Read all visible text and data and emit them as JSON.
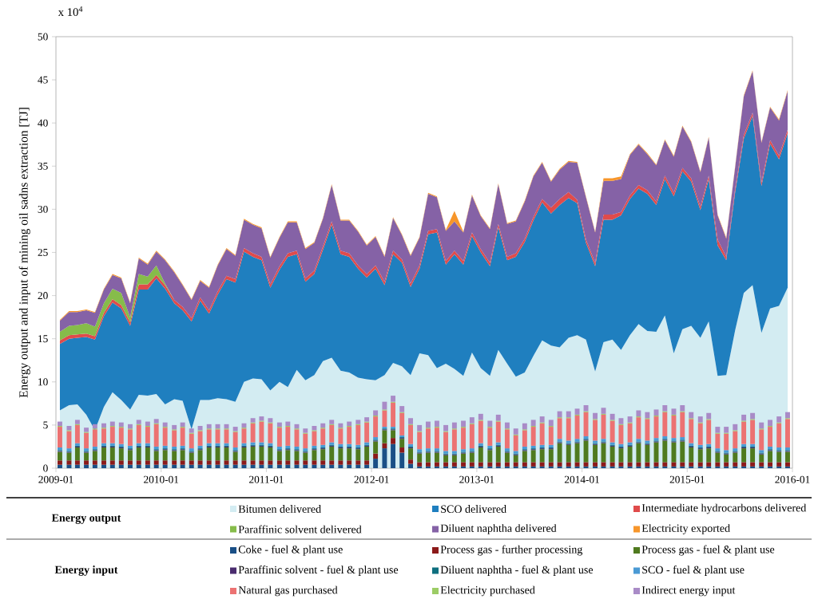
{
  "chart_data": [
    {
      "type": "area",
      "stacked": true,
      "ylabel": "Energy output and input of mining oil sadns extraction [TJ]",
      "annotations": [
        "x 10$^{4}$"
      ],
      "legend": "bottom",
      "legend_title": "Energy output",
      "xlim": [
        "2009-01",
        "2016-01"
      ],
      "xticks": [
        "2009-01",
        "2010-01",
        "2011-01",
        "2012-01",
        "2013-01",
        "2014-01",
        "2015-01",
        "2016-01"
      ],
      "ylim": [
        0,
        50
      ],
      "yticks": [
        0,
        5,
        10,
        15,
        20,
        25,
        30,
        35,
        40,
        45,
        50
      ],
      "x": [
        "2009-01-15",
        "2009-02-15",
        "2009-03-15",
        "2009-04-15",
        "2009-05-15",
        "2009-06-15",
        "2009-07-15",
        "2009-08-15",
        "2009-09-15",
        "2009-10-15",
        "2009-11-15",
        "2009-12-15",
        "2010-01-15",
        "2010-02-15",
        "2010-03-15",
        "2010-04-15",
        "2010-05-15",
        "2010-06-15",
        "2010-07-15",
        "2010-08-15",
        "2010-09-15",
        "2010-10-15",
        "2010-11-15",
        "2010-12-15",
        "2011-01-15",
        "2011-02-15",
        "2011-03-15",
        "2011-04-15",
        "2011-05-15",
        "2011-06-15",
        "2011-07-15",
        "2011-08-15",
        "2011-09-15",
        "2011-10-15",
        "2011-11-15",
        "2011-12-15",
        "2012-01-15",
        "2012-02-15",
        "2012-03-15",
        "2012-04-15",
        "2012-05-15",
        "2012-06-15",
        "2012-07-15",
        "2012-08-15",
        "2012-09-15",
        "2012-10-15",
        "2012-11-15",
        "2012-12-15",
        "2013-01-15",
        "2013-02-15",
        "2013-03-15",
        "2013-04-15",
        "2013-05-15",
        "2013-06-15",
        "2013-07-15",
        "2013-08-15",
        "2013-09-15",
        "2013-10-15",
        "2013-11-15",
        "2013-12-15",
        "2014-01-15",
        "2014-02-15",
        "2014-03-15",
        "2014-04-15",
        "2014-05-15",
        "2014-06-15",
        "2014-07-15",
        "2014-08-15",
        "2014-09-15",
        "2014-10-15",
        "2014-11-15",
        "2014-12-15",
        "2015-01-15",
        "2015-02-15",
        "2015-03-15",
        "2015-04-15",
        "2015-05-15",
        "2015-06-15",
        "2015-07-15",
        "2015-08-15",
        "2015-09-15",
        "2015-10-15",
        "2015-11-15",
        "2015-12-15"
      ],
      "series": [
        {
          "name": "Bitumen delivered",
          "color": "#d3ecf2",
          "values": [
            6.7,
            7.3,
            7.4,
            6.2,
            4.4,
            7.1,
            8.8,
            7.9,
            6.8,
            8.5,
            8.4,
            8.6,
            7.4,
            8.0,
            7.8,
            4.5,
            7.9,
            7.9,
            8.1,
            8.0,
            7.7,
            10.0,
            10.4,
            10.3,
            9.0,
            10.0,
            9.4,
            11.4,
            10.2,
            10.8,
            12.4,
            12.8,
            11.3,
            11.1,
            10.5,
            10.3,
            10.2,
            10.8,
            12.2,
            11.8,
            10.8,
            13.3,
            13.1,
            11.6,
            12.1,
            11.5,
            10.7,
            13.4,
            11.6,
            10.7,
            13.7,
            12.1,
            10.6,
            11.1,
            13.0,
            14.8,
            14.2,
            14.0,
            15.1,
            15.4,
            14.9,
            11.2,
            14.6,
            14.9,
            13.7,
            15.4,
            16.7,
            15.9,
            15.8,
            17.7,
            13.3,
            16.1,
            16.5,
            15.1,
            17.0,
            10.7,
            10.8,
            16.0,
            20.3,
            21.2,
            15.7,
            18.5,
            18.8,
            20.9
          ]
        },
        {
          "name": "SCO delivered",
          "color": "#1f7fbf",
          "values": [
            7.7,
            7.7,
            7.7,
            9.0,
            10.5,
            10.5,
            10.4,
            10.6,
            9.7,
            12.2,
            12.3,
            13.4,
            13.4,
            11.1,
            10.5,
            12.5,
            11.5,
            10.0,
            12.0,
            13.9,
            13.8,
            15.1,
            14.1,
            13.8,
            11.9,
            13.0,
            15.1,
            13.4,
            11.4,
            11.7,
            12.9,
            15.4,
            13.5,
            13.4,
            12.6,
            11.8,
            12.9,
            10.4,
            12.6,
            12.0,
            10.2,
            9.8,
            14.0,
            15.7,
            11.5,
            13.3,
            12.9,
            13.5,
            13.4,
            12.7,
            14.2,
            12.0,
            13.9,
            15.1,
            15.7,
            16.0,
            15.3,
            16.5,
            16.2,
            15.3,
            11.2,
            12.2,
            14.2,
            13.9,
            15.6,
            15.8,
            15.7,
            15.9,
            14.7,
            15.8,
            18.2,
            18.3,
            16.7,
            14.8,
            16.5,
            15.1,
            13.3,
            16.0,
            17.9,
            19.6,
            17.0,
            19.1,
            17.0,
            17.9
          ]
        },
        {
          "name": "Intermediate hydrocarbons delivered",
          "color": "#e04b4b",
          "values": [
            0.4,
            0.4,
            0.4,
            0.4,
            0.4,
            0.4,
            0.4,
            0.4,
            0.4,
            0.6,
            0.6,
            0.4,
            0.4,
            0.4,
            0.4,
            0.4,
            0.4,
            0.4,
            0.4,
            0.4,
            0.4,
            0.4,
            0.4,
            0.4,
            0.4,
            0.4,
            0.4,
            0.4,
            0.4,
            0.4,
            0.4,
            0.4,
            0.4,
            0.4,
            0.4,
            0.4,
            0.4,
            0.4,
            0.4,
            0.4,
            0.4,
            0.4,
            0.4,
            0.4,
            0.4,
            0.4,
            0.4,
            0.4,
            0.4,
            0.4,
            0.4,
            0.4,
            0.4,
            0.4,
            0.4,
            0.4,
            0.7,
            0.7,
            0.7,
            0.4,
            0.4,
            0.4,
            0.6,
            0.6,
            0.4,
            0.4,
            0.4,
            0.4,
            0.4,
            0.4,
            0.4,
            0.4,
            0.4,
            0.4,
            0.4,
            0.7,
            0.4,
            0.4,
            0.4,
            0.4,
            0.4,
            0.4,
            0.4,
            0.4
          ]
        },
        {
          "name": "Paraffinic solvent delivered",
          "color": "#86bc4a",
          "values": [
            1.0,
            1.1,
            1.1,
            1.2,
            1.1,
            1.1,
            1.2,
            1.4,
            0.6,
            1.2,
            0.9,
            1.1,
            0.2,
            0,
            0,
            0,
            0,
            0,
            0,
            0,
            0,
            0,
            0,
            0,
            0,
            0,
            0,
            0,
            0,
            0,
            0,
            0,
            0,
            0,
            0,
            0,
            0,
            0,
            0,
            0,
            0,
            0,
            0,
            0,
            0,
            0,
            0,
            0,
            0,
            0,
            0,
            0,
            0,
            0,
            0,
            0,
            0,
            0,
            0,
            0,
            0,
            0,
            0,
            0,
            0,
            0,
            0,
            0,
            0,
            0,
            0,
            0,
            0,
            0,
            0,
            0,
            0,
            0,
            0,
            0,
            0,
            0,
            0,
            0
          ]
        },
        {
          "name": "Diluent naphtha delivered",
          "color": "#8562a6",
          "values": [
            1.3,
            1.6,
            1.5,
            1.5,
            1.6,
            1.6,
            1.6,
            1.7,
            1.6,
            1.8,
            1.4,
            1.6,
            2.7,
            3.2,
            2.5,
            2.1,
            1.9,
            2.6,
            3.0,
            3.1,
            2.7,
            3.3,
            3.3,
            3.3,
            3.1,
            3.3,
            3.6,
            3.3,
            3.4,
            3.2,
            3.2,
            4.2,
            3.5,
            3.8,
            3.9,
            3.3,
            3.3,
            2.9,
            3.8,
            2.8,
            3.2,
            3.2,
            4.3,
            3.7,
            3.5,
            3.4,
            3.3,
            4.3,
            3.8,
            3.9,
            4.6,
            3.8,
            3.7,
            4.3,
            4.7,
            4.2,
            3.0,
            3.4,
            3.5,
            4.3,
            4.9,
            3.5,
            3.9,
            3.9,
            3.8,
            4.7,
            4.7,
            4.2,
            4.2,
            4.1,
            4.2,
            4.8,
            4.2,
            4.0,
            4.4,
            2.8,
            2.1,
            2.5,
            4.5,
            4.8,
            4.6,
            3.8,
            4.1,
            4.5
          ]
        },
        {
          "name": "Electricity exported",
          "color": "#f7962b",
          "values": [
            0.1,
            0.1,
            0.1,
            0.1,
            0.1,
            0.1,
            0.1,
            0.1,
            0.1,
            0.1,
            0.1,
            0.1,
            0.1,
            0.1,
            0.1,
            0.1,
            0.1,
            0.1,
            0.1,
            0.1,
            0.1,
            0.1,
            0.1,
            0.1,
            0.1,
            0.1,
            0.1,
            0.1,
            0.1,
            0.1,
            0.1,
            0.1,
            0.1,
            0.1,
            0.1,
            0.1,
            0.1,
            0.1,
            0.1,
            0.1,
            0.1,
            0.1,
            0.1,
            0.1,
            0.1,
            1.2,
            0.1,
            0.1,
            0.1,
            0.1,
            0.1,
            0.1,
            0.1,
            0.1,
            0.1,
            0.1,
            0.1,
            0.1,
            0.1,
            0.1,
            0.1,
            0.1,
            0.3,
            0.3,
            0.3,
            0.1,
            0.1,
            0.1,
            0.1,
            0.1,
            0.1,
            0.1,
            0.1,
            0.1,
            0.1,
            0.1,
            0.1,
            0.1,
            0.1,
            0.1,
            0.1,
            0.1,
            0.1,
            0.1
          ]
        }
      ]
    },
    {
      "type": "bar",
      "stacked": true,
      "legend": "bottom",
      "legend_title": "Energy input",
      "tick_labels": false,
      "xlim": [
        "2009-01",
        "2016-01"
      ],
      "xticks": [
        "2009-01",
        "2010-01",
        "2011-01",
        "2012-01",
        "2013-01",
        "2014-01",
        "2015-01",
        "2016-01"
      ],
      "ylim": [
        0,
        50
      ],
      "yticks": [
        0,
        5,
        10,
        15,
        20,
        25,
        30,
        35,
        40,
        45,
        50
      ],
      "x": [
        "2009-01-15",
        "2009-02-15",
        "2009-03-15",
        "2009-04-15",
        "2009-05-15",
        "2009-06-15",
        "2009-07-15",
        "2009-08-15",
        "2009-09-15",
        "2009-10-15",
        "2009-11-15",
        "2009-12-15",
        "2010-01-15",
        "2010-02-15",
        "2010-03-15",
        "2010-04-15",
        "2010-05-15",
        "2010-06-15",
        "2010-07-15",
        "2010-08-15",
        "2010-09-15",
        "2010-10-15",
        "2010-11-15",
        "2010-12-15",
        "2011-01-15",
        "2011-02-15",
        "2011-03-15",
        "2011-04-15",
        "2011-05-15",
        "2011-06-15",
        "2011-07-15",
        "2011-08-15",
        "2011-09-15",
        "2011-10-15",
        "2011-11-15",
        "2011-12-15",
        "2012-01-15",
        "2012-02-15",
        "2012-03-15",
        "2012-04-15",
        "2012-05-15",
        "2012-06-15",
        "2012-07-15",
        "2012-08-15",
        "2012-09-15",
        "2012-10-15",
        "2012-11-15",
        "2012-12-15",
        "2013-01-15",
        "2013-02-15",
        "2013-03-15",
        "2013-04-15",
        "2013-05-15",
        "2013-06-15",
        "2013-07-15",
        "2013-08-15",
        "2013-09-15",
        "2013-10-15",
        "2013-11-15",
        "2013-12-15",
        "2014-01-15",
        "2014-02-15",
        "2014-03-15",
        "2014-04-15",
        "2014-05-15",
        "2014-06-15",
        "2014-07-15",
        "2014-08-15",
        "2014-09-15",
        "2014-10-15",
        "2014-11-15",
        "2014-12-15",
        "2015-01-15",
        "2015-02-15",
        "2015-03-15",
        "2015-04-15",
        "2015-05-15",
        "2015-06-15",
        "2015-07-15",
        "2015-08-15",
        "2015-09-15",
        "2015-10-15",
        "2015-11-15",
        "2015-12-15"
      ],
      "series": [
        {
          "name": "Coke - fuel & plant use",
          "color": "#1a4f86",
          "values": [
            0.4,
            0.4,
            0.4,
            0.4,
            0.4,
            0.4,
            0.4,
            0.4,
            0.4,
            0.4,
            0.4,
            0.4,
            0.4,
            0.4,
            0.4,
            0.4,
            0.4,
            0.4,
            0.4,
            0.4,
            0.4,
            0.4,
            0.4,
            0.4,
            0.4,
            0.4,
            0.4,
            0.4,
            0.4,
            0.4,
            0.4,
            0.4,
            0.4,
            0.4,
            0.4,
            0.4,
            1.1,
            2.3,
            2.8,
            1.8,
            0.5,
            0.2,
            0.2,
            0.2,
            0.2,
            0.2,
            0.2,
            0.2,
            0.2,
            0.2,
            0.2,
            0.2,
            0.2,
            0.2,
            0.2,
            0.2,
            0.2,
            0.2,
            0.2,
            0.2,
            0.2,
            0.2,
            0.2,
            0.2,
            0.2,
            0.2,
            0.2,
            0.2,
            0.2,
            0.2,
            0.2,
            0.2,
            0.2,
            0.2,
            0.2,
            0.2,
            0.2,
            0.2,
            0.2,
            0.2,
            0.2,
            0.2,
            0.2,
            0.2
          ]
        },
        {
          "name": "Process gas - further processing",
          "color": "#8b1a1a",
          "values": [
            0.5,
            0.5,
            0.5,
            0.5,
            0.5,
            0.5,
            0.5,
            0.5,
            0.5,
            0.5,
            0.5,
            0.5,
            0.5,
            0.5,
            0.5,
            0.5,
            0.5,
            0.5,
            0.5,
            0.5,
            0.5,
            0.5,
            0.5,
            0.5,
            0.5,
            0.5,
            0.5,
            0.5,
            0.5,
            0.5,
            0.5,
            0.5,
            0.5,
            0.5,
            0.5,
            0.5,
            0.6,
            0.6,
            0.7,
            0.6,
            0.5,
            0.5,
            0.5,
            0.5,
            0.5,
            0.5,
            0.5,
            0.5,
            0.5,
            0.5,
            0.5,
            0.5,
            0.5,
            0.5,
            0.5,
            0.5,
            0.5,
            0.5,
            0.5,
            0.5,
            0.5,
            0.5,
            0.5,
            0.5,
            0.5,
            0.5,
            0.5,
            0.5,
            0.5,
            0.5,
            0.5,
            0.5,
            0.5,
            0.5,
            0.5,
            0.5,
            0.5,
            0.5,
            0.5,
            0.5,
            0.5,
            0.5,
            0.5,
            0.5
          ]
        },
        {
          "name": "Process gas - fuel & plant use",
          "color": "#4f7a1f",
          "values": [
            1.0,
            0.9,
            1.5,
            0.9,
            1.1,
            1.5,
            1.5,
            1.4,
            1.2,
            1.5,
            1.5,
            1.1,
            1.2,
            1.1,
            1.2,
            0.9,
            1.2,
            1.5,
            1.5,
            1.5,
            1.0,
            1.5,
            1.6,
            1.6,
            1.5,
            1.1,
            1.2,
            1.1,
            0.9,
            1.2,
            1.3,
            1.6,
            1.4,
            1.4,
            1.3,
            1.6,
            1.4,
            1.5,
            0.9,
            1.0,
            1.3,
            1.0,
            1.1,
            1.1,
            0.8,
            0.8,
            1.0,
            1.1,
            1.7,
            1.4,
            1.8,
            1.1,
            0.8,
            1.3,
            1.4,
            1.5,
            1.5,
            2.2,
            2.0,
            2.2,
            2.5,
            2.0,
            2.2,
            1.8,
            1.6,
            1.8,
            2.2,
            2.0,
            2.3,
            2.5,
            2.3,
            2.4,
            1.7,
            1.5,
            1.6,
            1.1,
            0.9,
            1.1,
            1.6,
            1.6,
            0.9,
            1.3,
            1.2,
            1.2
          ]
        },
        {
          "name": "Paraffinic solvent - fuel & plant use",
          "color": "#4a2c6e",
          "values": [
            0.1,
            0.1,
            0.1,
            0.1,
            0.1,
            0.1,
            0.1,
            0.1,
            0.1,
            0.1,
            0.1,
            0.1,
            0.1,
            0.1,
            0.1,
            0.1,
            0.1,
            0.1,
            0.1,
            0.1,
            0.1,
            0.1,
            0.1,
            0.1,
            0.1,
            0.1,
            0.1,
            0.1,
            0.1,
            0.1,
            0.1,
            0.1,
            0.1,
            0.1,
            0.1,
            0.1,
            0.1,
            0.1,
            0.1,
            0.1,
            0.1,
            0.1,
            0.1,
            0.1,
            0.1,
            0.1,
            0.1,
            0.1,
            0.1,
            0.1,
            0.1,
            0.1,
            0.1,
            0.1,
            0.1,
            0.1,
            0.1,
            0.1,
            0.1,
            0.1,
            0.1,
            0.1,
            0.1,
            0.1,
            0.1,
            0.1,
            0.1,
            0.1,
            0.1,
            0.1,
            0.1,
            0.1,
            0.1,
            0.1,
            0.1,
            0.1,
            0.1,
            0.1,
            0.1,
            0.1,
            0.1,
            0.1,
            0.1,
            0.1
          ]
        },
        {
          "name": "Diluent naphtha - fuel & plant use",
          "color": "#0e6f7f",
          "values": [
            0.1,
            0.1,
            0.1,
            0.1,
            0.1,
            0.1,
            0.1,
            0.1,
            0.1,
            0.1,
            0.1,
            0.1,
            0.1,
            0.1,
            0.1,
            0.1,
            0.1,
            0.1,
            0.1,
            0.1,
            0.1,
            0.1,
            0.1,
            0.1,
            0.1,
            0.1,
            0.1,
            0.1,
            0.1,
            0.1,
            0.1,
            0.1,
            0.1,
            0.1,
            0.1,
            0.1,
            0.1,
            0.1,
            0.1,
            0.1,
            0.1,
            0.1,
            0.1,
            0.1,
            0.1,
            0.1,
            0.1,
            0.1,
            0.1,
            0.1,
            0.1,
            0.1,
            0.1,
            0.1,
            0.1,
            0.1,
            0.1,
            0.1,
            0.1,
            0.1,
            0.1,
            0.1,
            0.1,
            0.1,
            0.1,
            0.1,
            0.1,
            0.1,
            0.1,
            0.1,
            0.1,
            0.1,
            0.1,
            0.1,
            0.1,
            0.1,
            0.1,
            0.1,
            0.1,
            0.1,
            0.1,
            0.1,
            0.1,
            0.1
          ]
        },
        {
          "name": "SCO - fuel & plant use",
          "color": "#4a9ad4",
          "values": [
            0.3,
            0.3,
            0.3,
            0.3,
            0.3,
            0.3,
            0.3,
            0.3,
            0.3,
            0.3,
            0.3,
            0.3,
            0.3,
            0.3,
            0.3,
            0.3,
            0.3,
            0.3,
            0.3,
            0.3,
            0.3,
            0.3,
            0.3,
            0.3,
            0.3,
            0.3,
            0.3,
            0.3,
            0.3,
            0.3,
            0.3,
            0.3,
            0.3,
            0.3,
            0.3,
            0.3,
            0.3,
            0.2,
            0.2,
            0.2,
            0.3,
            0.3,
            0.3,
            0.3,
            0.3,
            0.3,
            0.3,
            0.3,
            0.3,
            0.3,
            0.3,
            0.3,
            0.3,
            0.3,
            0.3,
            0.3,
            0.3,
            0.3,
            0.3,
            0.3,
            0.3,
            0.3,
            0.3,
            0.3,
            0.3,
            0.3,
            0.3,
            0.3,
            0.3,
            0.3,
            0.3,
            0.3,
            0.3,
            0.3,
            0.3,
            0.3,
            0.3,
            0.3,
            0.3,
            0.3,
            0.3,
            0.3,
            0.3,
            0.3
          ]
        },
        {
          "name": "Natural gas purchased",
          "color": "#ec7272",
          "values": [
            2.4,
            2.0,
            2.1,
            1.8,
            2.0,
            1.7,
            1.9,
            1.9,
            1.9,
            2.1,
            1.9,
            2.6,
            2.1,
            1.9,
            2.1,
            1.7,
            1.7,
            1.6,
            1.6,
            1.6,
            1.8,
            1.7,
            2.2,
            2.4,
            2.3,
            2.2,
            2.2,
            2.0,
            1.7,
            1.7,
            1.9,
            2.0,
            1.8,
            2.0,
            2.3,
            2.3,
            2.4,
            1.9,
            2.8,
            2.6,
            2.2,
            2.0,
            2.3,
            2.4,
            2.2,
            2.5,
            2.5,
            2.8,
            2.6,
            2.1,
            2.4,
            2.2,
            1.8,
            1.9,
            2.2,
            2.5,
            2.1,
            2.4,
            2.6,
            2.7,
            2.8,
            2.4,
            2.8,
            2.5,
            2.2,
            2.2,
            2.5,
            2.5,
            2.5,
            2.8,
            2.6,
            2.9,
            2.8,
            2.5,
            2.8,
            1.7,
            1.9,
            2.0,
            2.6,
            2.8,
            2.4,
            2.3,
            2.8,
            3.3
          ]
        },
        {
          "name": "Electricity purchased",
          "color": "#9ccc65",
          "values": [
            0.1,
            0.1,
            0.1,
            0.1,
            0.1,
            0.1,
            0.1,
            0.1,
            0.1,
            0.1,
            0.1,
            0.1,
            0.1,
            0.1,
            0.1,
            0.1,
            0.1,
            0.1,
            0.1,
            0.1,
            0.1,
            0.1,
            0.1,
            0.1,
            0.1,
            0.1,
            0.1,
            0.1,
            0.1,
            0.1,
            0.1,
            0.1,
            0.1,
            0.1,
            0.1,
            0.1,
            0.1,
            0.1,
            0.1,
            0.1,
            0.1,
            0.1,
            0.1,
            0.1,
            0.1,
            0.1,
            0.1,
            0.1,
            0.1,
            0.1,
            0.1,
            0.1,
            0.1,
            0.1,
            0.1,
            0.1,
            0.1,
            0.1,
            0.1,
            0.1,
            0.1,
            0.1,
            0.1,
            0.1,
            0.1,
            0.1,
            0.1,
            0.1,
            0.1,
            0.1,
            0.1,
            0.1,
            0.1,
            0.1,
            0.1,
            0.1,
            0.1,
            0.1,
            0.1,
            0.1,
            0.1,
            0.1,
            0.1,
            0.1
          ]
        },
        {
          "name": "Indirect energy input",
          "color": "#a98bc7",
          "values": [
            0.5,
            0.5,
            0.5,
            0.5,
            0.5,
            0.5,
            0.5,
            0.5,
            0.5,
            0.5,
            0.5,
            0.5,
            0.5,
            0.5,
            0.5,
            0.5,
            0.5,
            0.5,
            0.5,
            0.5,
            0.5,
            0.5,
            0.5,
            0.5,
            0.5,
            0.5,
            0.5,
            0.5,
            0.5,
            0.5,
            0.5,
            0.5,
            0.5,
            0.5,
            0.5,
            0.5,
            0.6,
            0.9,
            0.7,
            0.7,
            0.7,
            0.7,
            0.7,
            0.7,
            0.7,
            0.7,
            0.7,
            0.7,
            0.7,
            0.7,
            0.7,
            0.7,
            0.7,
            0.7,
            0.7,
            0.7,
            0.7,
            0.7,
            0.7,
            0.7,
            0.7,
            0.7,
            0.7,
            0.7,
            0.7,
            0.7,
            0.7,
            0.7,
            0.7,
            0.7,
            0.7,
            0.7,
            0.7,
            0.7,
            0.7,
            0.7,
            0.7,
            0.7,
            0.7,
            0.7,
            0.7,
            0.7,
            0.7,
            0.7
          ]
        }
      ]
    }
  ]
}
